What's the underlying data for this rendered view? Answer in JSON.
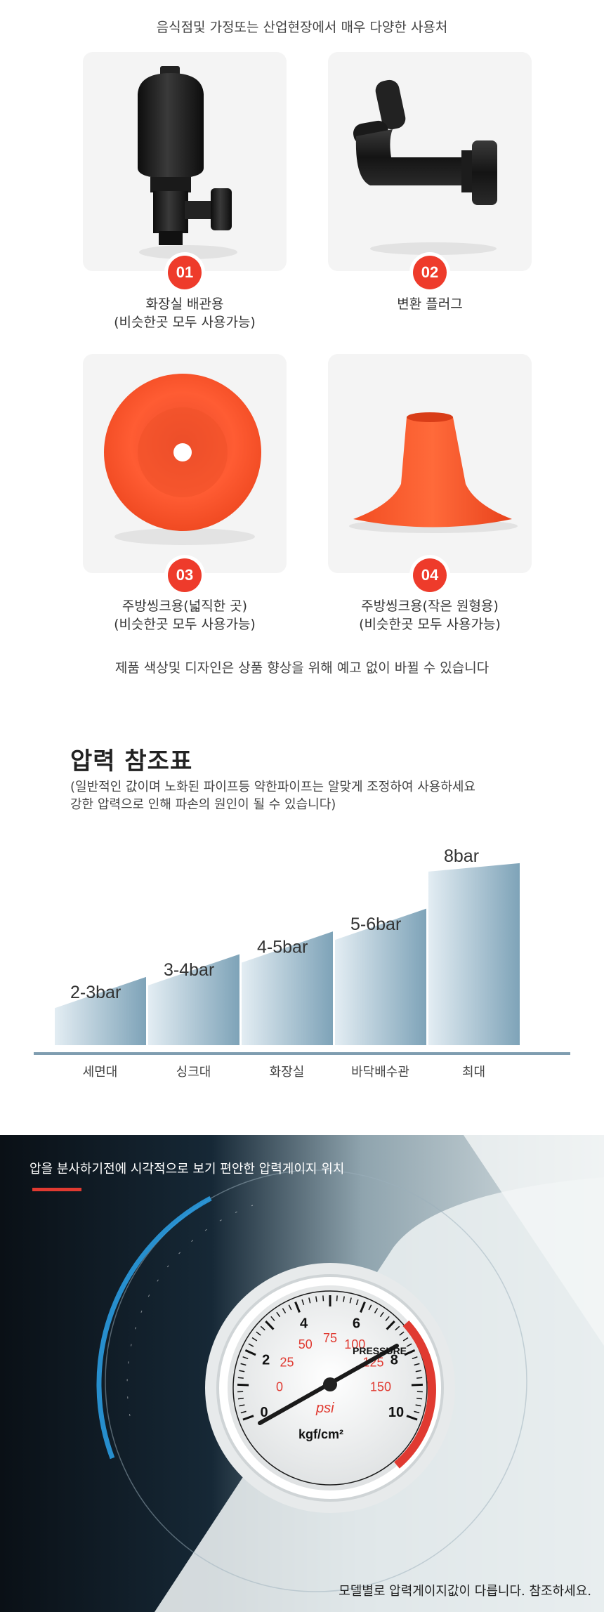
{
  "intro": "음식점및 가정또는 산업현장에서 매우 다양한 사용처",
  "items": [
    {
      "number": "01",
      "line1": "화장실 배관용",
      "line2": "(비슷한곳 모두 사용가능)",
      "icon": "black-drain-adapter-icon"
    },
    {
      "number": "02",
      "line1": "변환 플러그",
      "line2": "",
      "icon": "black-elbow-plug-icon"
    },
    {
      "number": "03",
      "line1": "주방씽크용(넓직한 곳)",
      "line2": "(비슷한곳 모두 사용가능)",
      "icon": "orange-flat-cup-icon"
    },
    {
      "number": "04",
      "line1": "주방씽크용(작은 원형용)",
      "line2": "(비슷한곳 모두 사용가능)",
      "icon": "orange-cone-cup-icon"
    }
  ],
  "notice": "제품 색상및 디자인은 상품 향상을 위해 예고 없이 바뀔 수 있습니다",
  "pressure": {
    "title": "압력 참조표",
    "desc1": "(일반적인 값이며 노화된 파이프등 약한파이프는 알맞게 조정하여 사용하세요",
    "desc2": "강한 압력으로 인해 파손의 원인이 될 수 있습니다)"
  },
  "chart_data": {
    "type": "area",
    "categories": [
      "세면대",
      "싱크대",
      "화장실",
      "바닥배수관",
      "최대"
    ],
    "value_labels": [
      "2-3bar",
      "3-4bar",
      "4-5bar",
      "5-6bar",
      "8bar"
    ],
    "series": [
      {
        "values_min": [
          2,
          3,
          4,
          5,
          8
        ],
        "values_max": [
          3,
          4,
          5,
          6,
          8
        ]
      }
    ],
    "title": "",
    "xlabel": "",
    "ylabel": "",
    "grid": false,
    "colors": {
      "fill_light": "#dfeaf2",
      "fill_dark": "#7fa3b8",
      "axis": "#7f9db0"
    }
  },
  "gauge": {
    "heading": "압을 분사하기전에 시각적으로 보기 편안한 압력게이지 위치",
    "footer": "모델별로 압력게이지값이 다릅니다. 참조하세요.",
    "outer_labels": [
      "0",
      "2",
      "4",
      "6",
      "8",
      "10"
    ],
    "inner_labels": [
      "0",
      "25",
      "50",
      "75",
      "100",
      "125",
      "150"
    ],
    "brand": "PRESSURE",
    "unit_psi": "psi",
    "unit_kgf": "kgf/cm²",
    "accent": "#e03a31"
  }
}
